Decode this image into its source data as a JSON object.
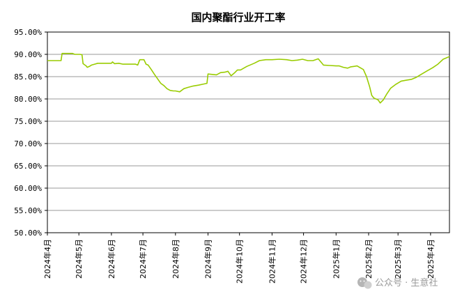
{
  "chart_data": {
    "type": "line",
    "title": "国内聚酯行业开工率",
    "xlabel": "",
    "ylabel": "",
    "ylim": [
      50,
      95
    ],
    "y_tick_labels": [
      "95.00%",
      "90.00%",
      "85.00%",
      "80.00%",
      "75.00%",
      "70.00%",
      "65.00%",
      "60.00%",
      "55.00%",
      "50.00%"
    ],
    "y_tick_values": [
      95,
      90,
      85,
      80,
      75,
      70,
      65,
      60,
      55,
      50
    ],
    "x_tick_labels": [
      "2024年4月",
      "2024年5月",
      "2024年6月",
      "2024年7月",
      "2024年8月",
      "2024年9月",
      "2024年10月",
      "2024年11月",
      "2024年12月",
      "2025年1月",
      "2025年2月",
      "2025年3月",
      "2025年4月"
    ],
    "x_tick_dates": [
      "2024-04-01",
      "2024-05-01",
      "2024-06-01",
      "2024-07-01",
      "2024-08-01",
      "2024-09-01",
      "2024-10-01",
      "2024-11-01",
      "2024-12-01",
      "2025-01-01",
      "2025-02-01",
      "2025-03-01",
      "2025-04-01"
    ],
    "x_range": [
      "2024-04-01",
      "2025-04-19"
    ],
    "grid": "horizontal",
    "legend": "none",
    "line_color": "#99cc00",
    "series": [
      {
        "x": [
          "2024-04-01",
          "2024-04-14",
          "2024-04-15",
          "2024-04-25",
          "2024-04-27",
          "2024-05-02",
          "2024-05-04",
          "2024-05-05",
          "2024-05-08",
          "2024-05-09",
          "2024-05-11",
          "2024-05-13",
          "2024-05-16",
          "2024-05-19",
          "2024-05-22",
          "2024-06-01",
          "2024-06-02",
          "2024-06-04",
          "2024-06-08",
          "2024-06-12",
          "2024-06-16",
          "2024-06-20",
          "2024-06-24",
          "2024-06-26",
          "2024-06-28",
          "2024-07-02",
          "2024-07-04",
          "2024-07-06",
          "2024-07-09",
          "2024-07-12",
          "2024-07-15",
          "2024-07-18",
          "2024-07-21",
          "2024-07-24",
          "2024-07-27",
          "2024-07-30",
          "2024-08-01",
          "2024-08-05",
          "2024-08-09",
          "2024-08-13",
          "2024-08-18",
          "2024-08-23",
          "2024-08-27",
          "2024-08-31",
          "2024-09-01",
          "2024-09-05",
          "2024-09-09",
          "2024-09-13",
          "2024-09-17",
          "2024-09-20",
          "2024-09-23",
          "2024-09-26",
          "2024-09-29",
          "2024-10-02",
          "2024-10-08",
          "2024-10-15",
          "2024-10-20",
          "2024-10-26",
          "2024-11-01",
          "2024-11-08",
          "2024-11-15",
          "2024-11-20",
          "2024-11-25",
          "2024-11-30",
          "2024-12-05",
          "2024-12-10",
          "2024-12-15",
          "2024-12-20",
          "2024-12-26",
          "2025-01-01",
          "2025-01-04",
          "2025-01-08",
          "2025-01-12",
          "2025-01-15",
          "2025-01-18",
          "2025-01-21",
          "2025-01-24",
          "2025-01-27",
          "2025-01-30",
          "2025-02-02",
          "2025-02-04",
          "2025-02-06",
          "2025-02-08",
          "2025-02-10",
          "2025-02-12",
          "2025-02-15",
          "2025-02-18",
          "2025-02-22",
          "2025-02-27",
          "2025-03-04",
          "2025-03-09",
          "2025-03-14",
          "2025-03-18",
          "2025-03-23",
          "2025-03-28",
          "2025-04-03",
          "2025-04-08",
          "2025-04-13",
          "2025-04-19"
        ],
        "values": [
          88.6,
          88.6,
          90.2,
          90.2,
          90.0,
          90.0,
          89.9,
          87.9,
          87.4,
          87.1,
          87.3,
          87.6,
          87.8,
          88.0,
          88.0,
          88.0,
          88.3,
          87.9,
          88.0,
          87.8,
          87.8,
          87.8,
          87.8,
          87.6,
          88.8,
          88.8,
          87.8,
          87.6,
          86.6,
          85.5,
          84.5,
          83.5,
          83.0,
          82.3,
          81.9,
          81.8,
          81.8,
          81.6,
          82.3,
          82.6,
          82.9,
          83.1,
          83.3,
          83.5,
          85.6,
          85.5,
          85.4,
          85.9,
          86.0,
          86.2,
          85.2,
          85.8,
          86.5,
          86.5,
          87.3,
          88.0,
          88.6,
          88.8,
          88.8,
          88.9,
          88.8,
          88.6,
          88.7,
          88.9,
          88.6,
          88.6,
          89.0,
          87.6,
          87.5,
          87.4,
          87.4,
          87.1,
          86.9,
          87.2,
          87.3,
          87.4,
          87.0,
          86.6,
          85.0,
          82.7,
          80.8,
          80.2,
          80.0,
          79.8,
          79.1,
          79.8,
          81.0,
          82.4,
          83.3,
          84.0,
          84.2,
          84.4,
          84.8,
          85.5,
          86.2,
          87.0,
          87.8,
          88.9,
          89.5
        ]
      }
    ]
  },
  "watermark": {
    "icon": "wechat-icon",
    "text": "公众号 · 生意社"
  }
}
